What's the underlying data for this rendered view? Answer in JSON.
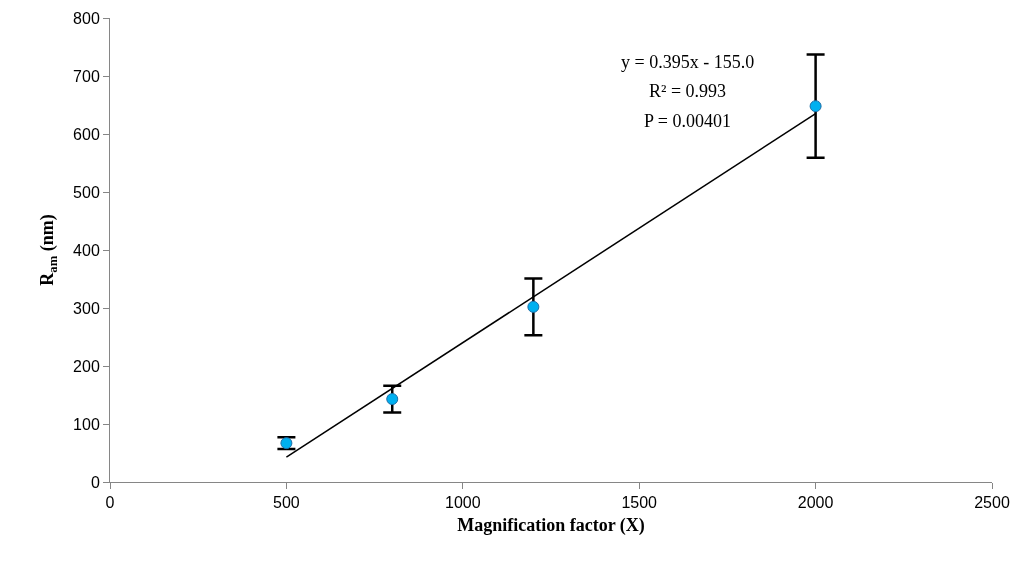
{
  "chart_data": {
    "type": "scatter",
    "xlabel": "Magnification factor (X)",
    "ylabel": "R$_{am}$ (nm)",
    "xlim": [
      0,
      2500
    ],
    "xticks": [
      0,
      500,
      1000,
      1500,
      2000,
      2500
    ],
    "ylim": [
      0,
      800
    ],
    "yticks": [
      0,
      100,
      200,
      300,
      400,
      500,
      600,
      700,
      800
    ],
    "grid": false,
    "annotations": [
      "y = 0.395x - 155.0",
      "R² = 0.993",
      "P = 0.00401"
    ],
    "series": [
      {
        "marker": "circle",
        "color": "#00b0f0",
        "x": [
          500,
          800,
          1200,
          2000
        ],
        "values": [
          67,
          143,
          302,
          648
        ],
        "errors": [
          10,
          23,
          49,
          89
        ]
      },
      {
        "type": "line",
        "color": "#000000",
        "x": [
          500,
          2000
        ],
        "values": [
          43,
          635
        ]
      }
    ]
  }
}
